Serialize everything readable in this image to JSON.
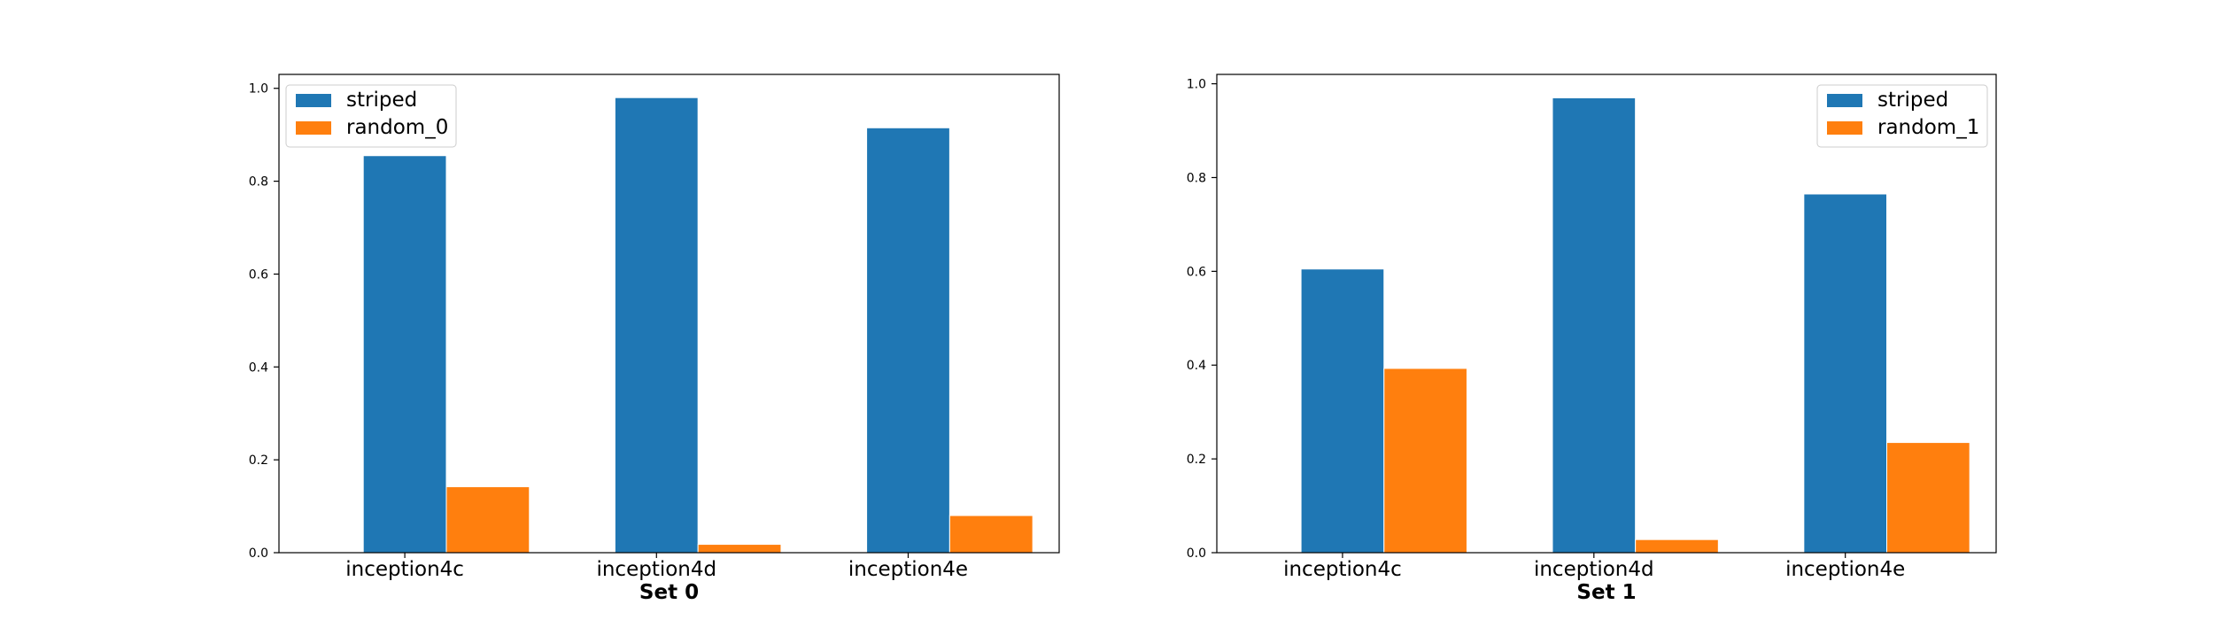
{
  "chart_data": [
    {
      "type": "bar",
      "categories": [
        "inception4c",
        "inception4d",
        "inception4e"
      ],
      "series": [
        {
          "name": "striped",
          "values": [
            0.855,
            0.98,
            0.915
          ],
          "color": "#1f77b4"
        },
        {
          "name": "random_0",
          "values": [
            0.142,
            0.018,
            0.08
          ],
          "color": "#ff7f0e"
        }
      ],
      "title": "",
      "xlabel": "Set 0",
      "ylabel": "",
      "ylim": [
        0,
        1.03
      ],
      "yticks": [
        "0.0",
        "0.2",
        "0.4",
        "0.6",
        "0.8",
        "1.0"
      ],
      "legend_position": "upper-left",
      "grid": false
    },
    {
      "type": "bar",
      "categories": [
        "inception4c",
        "inception4d",
        "inception4e"
      ],
      "series": [
        {
          "name": "striped",
          "values": [
            0.605,
            0.97,
            0.765
          ],
          "color": "#1f77b4"
        },
        {
          "name": "random_1",
          "values": [
            0.393,
            0.028,
            0.235
          ],
          "color": "#ff7f0e"
        }
      ],
      "title": "",
      "xlabel": "Set 1",
      "ylabel": "",
      "ylim": [
        0,
        1.02
      ],
      "yticks": [
        "0.0",
        "0.2",
        "0.4",
        "0.6",
        "0.8",
        "1.0"
      ],
      "legend_position": "upper-right",
      "grid": false
    }
  ]
}
